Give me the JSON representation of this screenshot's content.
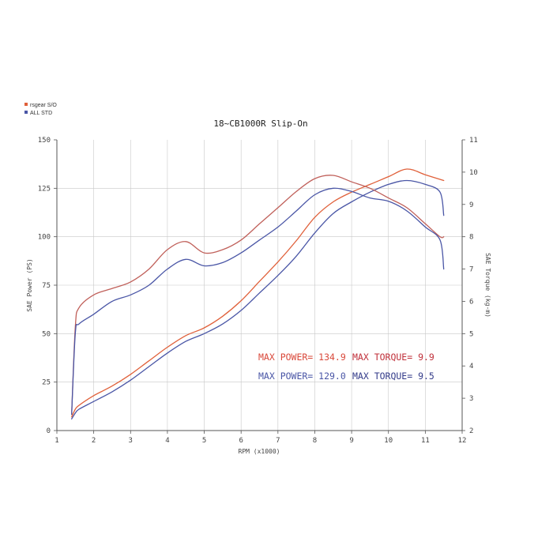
{
  "chart_data": {
    "type": "line",
    "title": "18~CB1000R Slip-On",
    "xlabel": "RPM (x1000)",
    "ylabel": "SAE Power (PS)",
    "y2label": "SAE Torque (kg-m)",
    "xlim": [
      1,
      12
    ],
    "ylim": [
      0,
      150
    ],
    "y2lim": [
      2,
      11
    ],
    "x_ticks": [
      "1",
      "2",
      "3",
      "4",
      "5",
      "6",
      "7",
      "8",
      "9",
      "10",
      "11",
      "12"
    ],
    "y_ticks": [
      "0",
      "25",
      "50",
      "75",
      "100",
      "125",
      "150"
    ],
    "y2_ticks": [
      "2",
      "3",
      "4",
      "5",
      "6",
      "7",
      "8",
      "9",
      "10",
      "11"
    ],
    "grid": true,
    "legend": {
      "position": "top-left",
      "entries": [
        {
          "label": "rsgear S/O",
          "color": "#e0603a"
        },
        {
          "label": "ALL STD",
          "color": "#4a56a6"
        }
      ]
    },
    "series": [
      {
        "name": "rsgear S/O",
        "kind": "power",
        "axis": "left",
        "color": "#e0603a",
        "x": [
          1.4,
          1.5,
          1.6,
          2.0,
          2.5,
          3.0,
          3.5,
          4.0,
          4.5,
          5.0,
          5.5,
          6.0,
          6.5,
          7.0,
          7.5,
          8.0,
          8.5,
          9.0,
          9.5,
          10.0,
          10.5,
          11.0,
          11.5
        ],
        "y": [
          7,
          11,
          13,
          18,
          23,
          29,
          36,
          43,
          49,
          53,
          59,
          67,
          77,
          87,
          98,
          110,
          118,
          123,
          127,
          131,
          134.9,
          132,
          129
        ]
      },
      {
        "name": "ALL STD",
        "kind": "power",
        "axis": "left",
        "color": "#4a56a6",
        "x": [
          1.4,
          1.5,
          1.6,
          2.0,
          2.5,
          3.0,
          3.5,
          4.0,
          4.5,
          5.0,
          5.5,
          6.0,
          6.5,
          7.0,
          7.5,
          8.0,
          8.5,
          9.0,
          9.5,
          10.0,
          10.5,
          11.0,
          11.4,
          11.5
        ],
        "y": [
          6,
          9,
          11,
          15,
          20,
          26,
          33,
          40,
          46,
          50,
          55,
          62,
          71,
          80,
          90,
          102,
          112,
          118,
          123,
          127,
          129,
          127,
          123,
          111
        ]
      },
      {
        "name": "rsgear S/O",
        "kind": "torque",
        "axis": "right",
        "color": "#c0605a",
        "x": [
          1.4,
          1.5,
          1.6,
          2.0,
          2.5,
          3.0,
          3.5,
          4.0,
          4.5,
          5.0,
          5.5,
          6.0,
          6.5,
          7.0,
          7.5,
          8.0,
          8.5,
          9.0,
          9.5,
          10.0,
          10.5,
          11.0,
          11.4,
          11.5
        ],
        "y": [
          2.5,
          5.2,
          5.8,
          6.2,
          6.4,
          6.6,
          7.0,
          7.6,
          7.85,
          7.5,
          7.6,
          7.9,
          8.4,
          8.9,
          9.4,
          9.8,
          9.9,
          9.7,
          9.5,
          9.2,
          8.9,
          8.4,
          8.0,
          8.0
        ]
      },
      {
        "name": "ALL STD",
        "kind": "torque",
        "axis": "right",
        "color": "#4a56a6",
        "x": [
          1.4,
          1.5,
          1.6,
          2.0,
          2.5,
          3.0,
          3.5,
          4.0,
          4.5,
          5.0,
          5.5,
          6.0,
          6.5,
          7.0,
          7.5,
          8.0,
          8.5,
          9.0,
          9.5,
          10.0,
          10.5,
          11.0,
          11.4,
          11.5
        ],
        "y": [
          2.5,
          5.0,
          5.3,
          5.6,
          6.0,
          6.2,
          6.5,
          7.0,
          7.3,
          7.1,
          7.2,
          7.5,
          7.9,
          8.3,
          8.8,
          9.3,
          9.5,
          9.4,
          9.2,
          9.1,
          8.8,
          8.3,
          7.9,
          7.0
        ]
      }
    ],
    "annotations": [
      {
        "text": "MAX POWER= 134.9",
        "color": "#d9483a"
      },
      {
        "text": "MAX TORQUE= 9.9",
        "color": "#c0303a"
      },
      {
        "text": "MAX POWER= 129.0",
        "color": "#4a56a6"
      },
      {
        "text": "MAX TORQUE= 9.5",
        "color": "#343c8a"
      }
    ]
  }
}
